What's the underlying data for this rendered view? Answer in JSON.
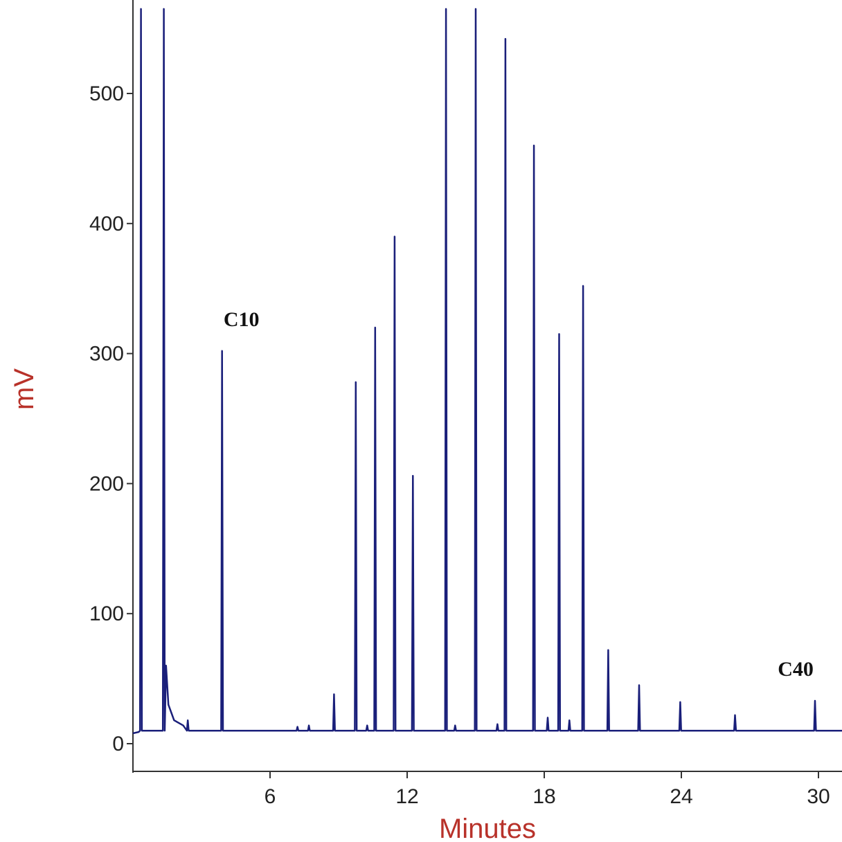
{
  "chart_data": {
    "type": "line",
    "title": "",
    "xlabel": "Minutes",
    "ylabel": "mV",
    "xlim": [
      0,
      31.2
    ],
    "ylim": [
      -22,
      565
    ],
    "x_ticks": [
      6,
      12,
      18,
      24,
      30
    ],
    "y_ticks": [
      0,
      100,
      200,
      300,
      400,
      500
    ],
    "x_tick_labels": [
      "6",
      "12",
      "18",
      "24",
      "30"
    ],
    "y_tick_labels": [
      "0",
      "100",
      "200",
      "300",
      "400",
      "500"
    ],
    "grid": false,
    "baseline": 10,
    "series": [
      {
        "color": "#1a1f7a",
        "peaks": [
          {
            "x": 0.35,
            "y": 565
          },
          {
            "x": 1.35,
            "y": 565
          },
          {
            "x": 2.4,
            "y": 18
          },
          {
            "x": 3.9,
            "y": 302
          },
          {
            "x": 7.2,
            "y": 13
          },
          {
            "x": 7.7,
            "y": 14
          },
          {
            "x": 8.8,
            "y": 38
          },
          {
            "x": 9.75,
            "y": 278
          },
          {
            "x": 10.25,
            "y": 14
          },
          {
            "x": 10.6,
            "y": 320
          },
          {
            "x": 11.45,
            "y": 390
          },
          {
            "x": 12.25,
            "y": 206
          },
          {
            "x": 13.7,
            "y": 565
          },
          {
            "x": 14.1,
            "y": 14
          },
          {
            "x": 15.0,
            "y": 565
          },
          {
            "x": 15.95,
            "y": 15
          },
          {
            "x": 16.3,
            "y": 542
          },
          {
            "x": 17.55,
            "y": 460
          },
          {
            "x": 18.15,
            "y": 20
          },
          {
            "x": 18.65,
            "y": 315
          },
          {
            "x": 19.1,
            "y": 18
          },
          {
            "x": 19.7,
            "y": 352
          },
          {
            "x": 20.8,
            "y": 72
          },
          {
            "x": 22.15,
            "y": 45
          },
          {
            "x": 23.95,
            "y": 32
          },
          {
            "x": 26.35,
            "y": 22
          },
          {
            "x": 29.85,
            "y": 33
          }
        ]
      }
    ],
    "annotations": [
      {
        "text": "C10",
        "x": 3.9,
        "y": 302
      },
      {
        "text": "C40",
        "x": 29.85,
        "y": 33
      }
    ]
  }
}
